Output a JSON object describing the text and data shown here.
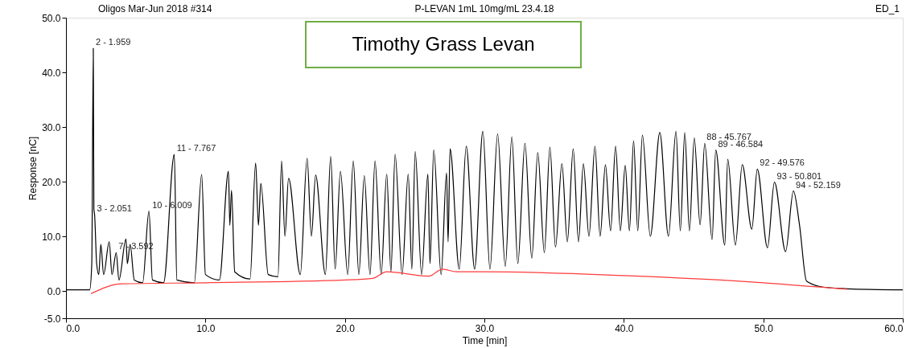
{
  "chart_data": {
    "type": "line",
    "title": "Timothy Grass Levan",
    "xlabel": "Time [min]",
    "ylabel": "Response [nC]",
    "xlim": [
      0,
      60
    ],
    "ylim": [
      -5,
      50
    ],
    "xticks": [
      {
        "value": 0,
        "label": "0.0"
      },
      {
        "value": 10,
        "label": "10.0"
      },
      {
        "value": 20,
        "label": "20.0"
      },
      {
        "value": 30,
        "label": "30.0"
      },
      {
        "value": 40,
        "label": "40.0"
      },
      {
        "value": 50,
        "label": "50.0"
      },
      {
        "value": 60,
        "label": "60.0"
      }
    ],
    "yticks": [
      {
        "value": -5,
        "label": "-5.0"
      },
      {
        "value": 0,
        "label": "0.0"
      },
      {
        "value": 10,
        "label": "10.0"
      },
      {
        "value": 20,
        "label": "20.0"
      },
      {
        "value": 30,
        "label": "30.0"
      },
      {
        "value": 40,
        "label": "40.0"
      },
      {
        "value": 50,
        "label": "50.0"
      }
    ],
    "grid": false,
    "marker": "none",
    "series": [
      {
        "color": "#000000",
        "x": [
          0,
          1.7,
          1.85,
          1.959,
          2.0,
          2.051,
          2.2,
          2.35,
          2.5,
          2.7,
          3.1,
          3.3,
          3.6,
          3.8,
          4.3,
          4.4,
          4.6,
          4.9,
          5.5,
          5.95,
          6.2,
          7.0,
          7.767,
          7.95,
          9.2,
          9.73,
          10.0,
          11.0,
          11.65,
          11.75,
          11.87,
          12.1,
          13.2,
          13.6,
          13.8,
          13.97,
          14.5,
          15.2,
          15.46,
          15.7,
          15.96,
          16.8,
          17.29,
          17.6,
          17.9,
          18.6,
          18.98,
          19.3,
          19.68,
          20.2,
          20.6,
          21.0,
          21.39,
          21.8,
          22.16,
          22.6,
          23.0,
          23.3,
          23.6,
          24.1,
          24.54,
          24.8,
          25.04,
          25.5,
          25.95,
          26.1,
          26.37,
          26.9,
          27.29,
          27.4,
          27.54,
          28.2,
          28.7,
          29.3,
          29.89,
          30.4,
          30.95,
          31.5,
          31.97,
          32.4,
          32.91,
          33.4,
          33.83,
          34.3,
          34.7,
          35.1,
          35.56,
          35.95,
          36.37,
          36.75,
          37.1,
          37.5,
          37.93,
          38.3,
          38.68,
          39.05,
          39.41,
          39.75,
          40.1,
          40.4,
          40.7,
          41.0,
          41.33,
          41.9,
          42.58,
          43.2,
          43.74,
          44.05,
          44.37,
          44.7,
          45.05,
          45.47,
          45.8,
          46.33,
          46.59,
          47.24,
          47.45,
          48.0,
          48.49,
          49.18,
          49.57,
          50.3,
          50.8,
          51.6,
          52.16,
          52.6,
          53.1,
          54.3,
          56,
          60
        ],
        "values": [
          0.2,
          0.2,
          5,
          44.4,
          15,
          14,
          5,
          3,
          8.5,
          3,
          9,
          3,
          7,
          2,
          9.5,
          5,
          8.5,
          2,
          1.5,
          14.6,
          2,
          1.5,
          25,
          2,
          1.5,
          21.3,
          3,
          2,
          21.9,
          12,
          18.4,
          3.5,
          2.2,
          23.4,
          12,
          19.7,
          3,
          2.6,
          23.8,
          10,
          20.6,
          3,
          24.3,
          10,
          21.2,
          3,
          24.6,
          4,
          21.9,
          3,
          23.8,
          3,
          21.1,
          3,
          23.8,
          3,
          21.4,
          3.5,
          25.0,
          3,
          21.4,
          4,
          25.5,
          3,
          21.4,
          5,
          25.8,
          3,
          21.6,
          9,
          26,
          4,
          26.5,
          4,
          29.2,
          4,
          28.7,
          4.5,
          28.2,
          5,
          27.0,
          6,
          25.3,
          7,
          26.3,
          8,
          23.3,
          9,
          26.0,
          9,
          23.3,
          10,
          26.5,
          10,
          23.1,
          11,
          26.5,
          11,
          23.0,
          11,
          27.5,
          11,
          28.5,
          10,
          29.0,
          10,
          29.2,
          11,
          29.0,
          11,
          28.0,
          12.1,
          27.0,
          9.4,
          25.8,
          8.4,
          24.1,
          8.4,
          23.1,
          11.3,
          22.3,
          7.9,
          19.9,
          7.2,
          18.3,
          12,
          1.8,
          0.7,
          0.4,
          0.2
        ]
      },
      {
        "color": "#ff3b3b",
        "x": [
          1.8,
          4,
          10,
          20,
          22,
          23,
          26,
          27,
          28,
          30,
          40,
          50,
          56
        ],
        "values": [
          -0.5,
          1.3,
          1.5,
          2,
          2.3,
          3.5,
          2.7,
          4,
          3.5,
          3.5,
          2.8,
          1.5,
          0.3
        ]
      }
    ],
    "annotations": [
      "Oligos Mar-Jun 2018 #314",
      "P-LEVAN 1mL 10mg/mL 23.4.18",
      "ED_1",
      {
        "text": "2 - 1.959",
        "x": 1.959,
        "y": 44.4
      },
      {
        "text": "3 - 2.051",
        "x": 2.051,
        "y": 14
      },
      {
        "text": "7 - 3.592",
        "x": 3.592,
        "y": 7
      },
      {
        "text": "10 - 6.009",
        "x": 6.009,
        "y": 14.6
      },
      {
        "text": "11 - 7.767",
        "x": 7.767,
        "y": 25
      },
      {
        "text": "88 - 45.767",
        "x": 45.767,
        "y": 27.0
      },
      {
        "text": "89 - 46.584",
        "x": 46.584,
        "y": 25.8
      },
      {
        "text": "92 - 49.576",
        "x": 49.576,
        "y": 22.3
      },
      {
        "text": "93 - 50.801",
        "x": 50.801,
        "y": 19.9
      },
      {
        "text": "94 - 52.159",
        "x": 52.159,
        "y": 18.3
      }
    ]
  }
}
